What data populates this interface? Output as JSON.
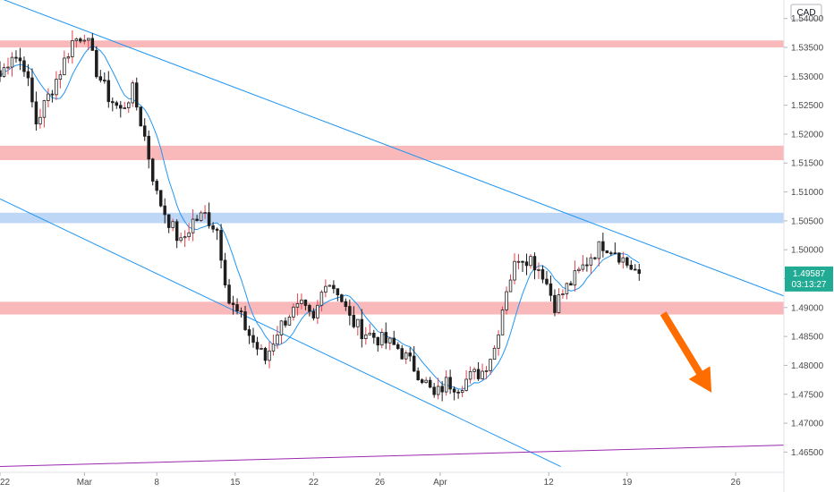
{
  "chart_data": {
    "type": "candlestick",
    "currency_label": "CAD",
    "ylim": [
      1.4615,
      1.5432
    ],
    "yticks": [
      "1.54000",
      "1.53500",
      "1.53000",
      "1.52500",
      "1.52000",
      "1.51500",
      "1.51000",
      "1.50500",
      "1.50000",
      "1.49500",
      "1.49000",
      "1.48500",
      "1.48000",
      "1.47500",
      "1.47000",
      "1.46500"
    ],
    "xticks": [
      {
        "label": "22",
        "x": 0
      },
      {
        "label": "Mar",
        "x": 7
      },
      {
        "label": "8",
        "x": 13
      },
      {
        "label": "15",
        "x": 19.5
      },
      {
        "label": "22",
        "x": 26
      },
      {
        "label": "26",
        "x": 31.5
      },
      {
        "label": "Apr",
        "x": 36.5
      },
      {
        "label": "12",
        "x": 45.5
      },
      {
        "label": "19",
        "x": 52
      },
      {
        "label": "26",
        "x": 61
      }
    ],
    "xlim": [
      0,
      65
    ],
    "price_tag": {
      "value": "1.49587",
      "countdown": "03:13:27",
      "y": 1.49587
    },
    "colors": {
      "up": "#ffffff",
      "down": "#1e1e1e",
      "ma": "#2196f3",
      "trend": "#2196f3",
      "support": "#9c27b0",
      "resistance_zone": "#f7a1a3",
      "blue_zone": "#a9c9f4",
      "arrow": "#ff6d00",
      "tag": "#22ab94"
    },
    "zones": [
      {
        "type": "red",
        "low": 1.535,
        "high": 1.5362
      },
      {
        "type": "red",
        "low": 1.5155,
        "high": 1.518
      },
      {
        "type": "blue",
        "low": 1.5046,
        "high": 1.5064
      },
      {
        "type": "red",
        "low": 1.4888,
        "high": 1.491
      }
    ],
    "trend_lines": [
      {
        "name": "upper",
        "color": "trend",
        "from": [
          0,
          1.5435
        ],
        "to": [
          65,
          1.492
        ]
      },
      {
        "name": "lower",
        "color": "trend",
        "from": [
          0,
          1.5088
        ],
        "to": [
          46.5,
          1.4625
        ]
      },
      {
        "name": "support",
        "color": "support",
        "from": [
          0,
          1.4625
        ],
        "to": [
          65,
          1.4662
        ]
      }
    ],
    "arrow": {
      "from": [
        55,
        1.489
      ],
      "to": [
        59,
        1.4753
      ]
    },
    "close_anchors": [
      [
        0,
        1.53
      ],
      [
        1,
        1.534
      ],
      [
        2,
        1.532
      ],
      [
        3,
        1.522
      ],
      [
        4,
        1.5265
      ],
      [
        5,
        1.531
      ],
      [
        6,
        1.536
      ],
      [
        7,
        1.5375
      ],
      [
        8,
        1.531
      ],
      [
        9,
        1.5265
      ],
      [
        10,
        1.524
      ],
      [
        11,
        1.5275
      ],
      [
        12,
        1.5195
      ],
      [
        13,
        1.5095
      ],
      [
        14,
        1.505
      ],
      [
        15,
        1.501
      ],
      [
        16,
        1.505
      ],
      [
        17,
        1.506
      ],
      [
        18,
        1.5035
      ],
      [
        19,
        1.491
      ],
      [
        20,
        1.488
      ],
      [
        21,
        1.484
      ],
      [
        22,
        1.481
      ],
      [
        23,
        1.486
      ],
      [
        24,
        1.489
      ],
      [
        25,
        1.49
      ],
      [
        26,
        1.4875
      ],
      [
        27,
        1.495
      ],
      [
        28,
        1.493
      ],
      [
        29,
        1.488
      ],
      [
        30,
        1.486
      ],
      [
        31,
        1.485
      ],
      [
        32,
        1.484
      ],
      [
        33,
        1.483
      ],
      [
        34,
        1.4805
      ],
      [
        35,
        1.478
      ],
      [
        36,
        1.4745
      ],
      [
        37,
        1.477
      ],
      [
        38,
        1.4765
      ],
      [
        39,
        1.478
      ],
      [
        40,
        1.479
      ],
      [
        41,
        1.483
      ],
      [
        42,
        1.4935
      ],
      [
        43,
        1.499
      ],
      [
        44,
        1.4985
      ],
      [
        45,
        1.496
      ],
      [
        46,
        1.4905
      ],
      [
        47,
        1.4935
      ],
      [
        48,
        1.496
      ],
      [
        49,
        1.499
      ],
      [
        50,
        1.501
      ],
      [
        51,
        1.5
      ],
      [
        52,
        1.4975
      ],
      [
        53,
        1.4959
      ]
    ],
    "candles_per_unit": 3
  }
}
